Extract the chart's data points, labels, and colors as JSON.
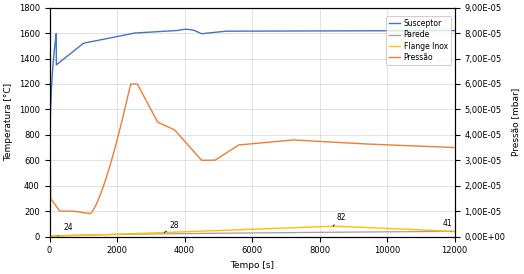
{
  "title": "",
  "xlabel": "Tempo [s]",
  "ylabel_left": "Temperatura [°C]",
  "ylabel_right": "Pressão [mbar]",
  "xlim": [
    0,
    12000
  ],
  "ylim_left": [
    0,
    1800
  ],
  "ylim_right": [
    0,
    9e-05
  ],
  "yticks_left": [
    0,
    200,
    400,
    600,
    800,
    1000,
    1200,
    1400,
    1600,
    1800
  ],
  "yticks_right": [
    0.0,
    1e-05,
    2e-05,
    3e-05,
    4e-05,
    5e-05,
    6e-05,
    7e-05,
    8e-05,
    9e-05
  ],
  "xticks": [
    0,
    2000,
    4000,
    6000,
    8000,
    10000,
    12000
  ],
  "legend_labels": [
    "Susceptor",
    "Parede",
    "Flange Inox",
    "Pressão"
  ],
  "colors": {
    "susceptor": "#4472C4",
    "parede": "#A0A0A0",
    "flange": "#FFC000",
    "pressao": "#ED7D31"
  },
  "background_color": "#ffffff",
  "grid_color": "#d8d8d8"
}
